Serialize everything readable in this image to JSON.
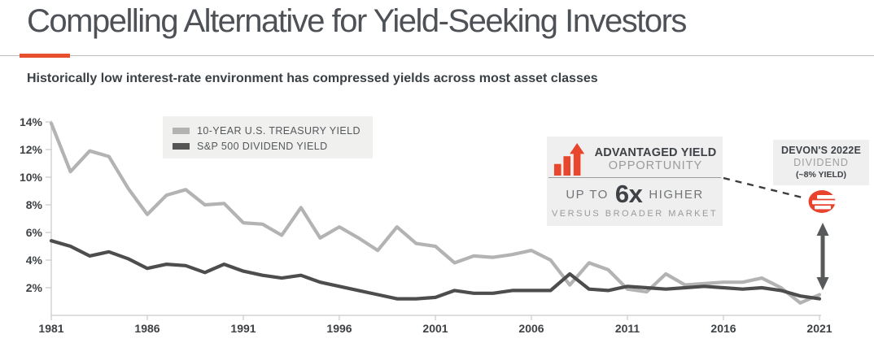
{
  "header": {
    "title": "Compelling Alternative for Yield-Seeking Investors",
    "subtitle": "Historically low interest-rate environment has compressed yields across most asset classes",
    "accent_color": "#e8502d"
  },
  "chart_data": {
    "type": "line",
    "title": "",
    "xlabel": "",
    "ylabel": "",
    "x": [
      1981,
      1982,
      1983,
      1984,
      1985,
      1986,
      1987,
      1988,
      1989,
      1990,
      1991,
      1992,
      1993,
      1994,
      1995,
      1996,
      1997,
      1998,
      1999,
      2000,
      2001,
      2002,
      2003,
      2004,
      2005,
      2006,
      2007,
      2008,
      2009,
      2010,
      2011,
      2012,
      2013,
      2014,
      2015,
      2016,
      2017,
      2018,
      2019,
      2020,
      2021
    ],
    "series": [
      {
        "name": "10-YEAR U.S. TREASURY YIELD",
        "color": "#b3b3b3",
        "values": [
          13.9,
          10.4,
          11.9,
          11.5,
          9.2,
          7.3,
          8.7,
          9.1,
          8.0,
          8.1,
          6.7,
          6.6,
          5.8,
          7.8,
          5.6,
          6.4,
          5.6,
          4.7,
          6.4,
          5.2,
          5.0,
          3.8,
          4.3,
          4.2,
          4.4,
          4.7,
          4.0,
          2.2,
          3.8,
          3.3,
          1.9,
          1.7,
          3.0,
          2.2,
          2.3,
          2.4,
          2.4,
          2.7,
          2.0,
          0.9,
          1.5
        ]
      },
      {
        "name": "S&P 500 DIVIDEND YIELD",
        "color": "#4d4d4d",
        "values": [
          5.4,
          5.0,
          4.3,
          4.6,
          4.1,
          3.4,
          3.7,
          3.6,
          3.1,
          3.7,
          3.2,
          2.9,
          2.7,
          2.9,
          2.4,
          2.1,
          1.8,
          1.5,
          1.2,
          1.2,
          1.3,
          1.8,
          1.6,
          1.6,
          1.8,
          1.8,
          1.8,
          3.0,
          1.9,
          1.8,
          2.1,
          2.0,
          1.9,
          2.0,
          2.1,
          2.0,
          1.9,
          2.0,
          1.8,
          1.4,
          1.2
        ]
      }
    ],
    "ylim": [
      0,
      14.1
    ],
    "y_ticks": [
      2,
      4,
      6,
      8,
      10,
      12,
      14
    ],
    "y_tick_suffix": "%",
    "x_ticks": [
      1981,
      1986,
      1991,
      1996,
      2001,
      2006,
      2011,
      2016,
      2021
    ],
    "grid": false,
    "legend_position": "top-left-inside"
  },
  "legend": {
    "items": [
      {
        "label": "10-YEAR U.S. TREASURY YIELD",
        "color": "#b3b3b3"
      },
      {
        "label": "S&P 500 DIVIDEND YIELD",
        "color": "#565656"
      }
    ]
  },
  "callout": {
    "heading": "ADVANTAGED YIELD",
    "subheading": "OPPORTUNITY",
    "prefix": "UP TO",
    "multiple": "6x",
    "suffix": "HIGHER",
    "footnote": "VERSUS BROADER MARKET",
    "icon": "bar-chart-up-arrow-icon",
    "accent_color": "#e8472e"
  },
  "devon": {
    "line1": "DEVON'S 2022E",
    "line2": "DIVIDEND",
    "line3": "(~8% YIELD)",
    "logo": "devon-energy-logo",
    "logo_color": "#e8432c",
    "arrow_color": "#58595b"
  }
}
